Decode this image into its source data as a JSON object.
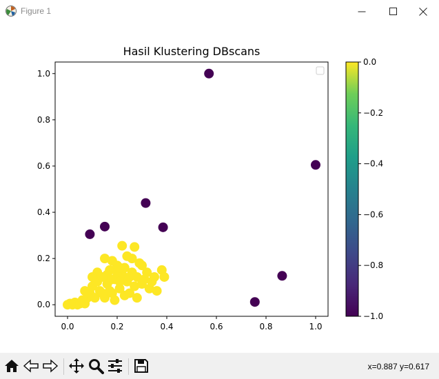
{
  "window": {
    "title": "Figure 1"
  },
  "chart_data": {
    "type": "scatter",
    "title": "Hasil Klustering DBscans",
    "xlabel": "",
    "ylabel": "",
    "xlim": [
      -0.05,
      1.05
    ],
    "ylim": [
      -0.05,
      1.05
    ],
    "xticks": [
      "0.0",
      "0.2",
      "0.4",
      "0.6",
      "0.8",
      "1.0"
    ],
    "yticks": [
      "0.0",
      "0.2",
      "0.4",
      "0.6",
      "0.8",
      "1.0"
    ],
    "legend": "top-right (empty)",
    "colorbar": {
      "min": -1.0,
      "max": 0.0,
      "cmap": "viridis",
      "ticks": [
        "−1.0",
        "−0.8",
        "−0.6",
        "−0.4",
        "−0.2",
        "0.0"
      ]
    },
    "colors": {
      "cluster": "#fde725",
      "noise": "#440154"
    },
    "series": [
      {
        "label_value": -1,
        "points": [
          [
            0.57,
            1.0
          ],
          [
            1.0,
            0.605
          ],
          [
            0.315,
            0.44
          ],
          [
            0.15,
            0.338
          ],
          [
            0.385,
            0.335
          ],
          [
            0.09,
            0.305
          ],
          [
            0.865,
            0.125
          ],
          [
            0.755,
            0.012
          ]
        ]
      },
      {
        "label_value": 0,
        "points": [
          [
            0.0,
            0.0
          ],
          [
            0.01,
            0.005
          ],
          [
            0.02,
            0.0
          ],
          [
            0.03,
            0.01
          ],
          [
            0.04,
            0.0
          ],
          [
            0.05,
            0.005
          ],
          [
            0.06,
            0.02
          ],
          [
            0.07,
            0.005
          ],
          [
            0.08,
            0.03
          ],
          [
            0.07,
            0.06
          ],
          [
            0.09,
            0.05
          ],
          [
            0.1,
            0.08
          ],
          [
            0.11,
            0.03
          ],
          [
            0.12,
            0.1
          ],
          [
            0.13,
            0.06
          ],
          [
            0.14,
            0.12
          ],
          [
            0.15,
            0.03
          ],
          [
            0.16,
            0.09
          ],
          [
            0.17,
            0.15
          ],
          [
            0.18,
            0.05
          ],
          [
            0.19,
            0.11
          ],
          [
            0.2,
            0.17
          ],
          [
            0.21,
            0.07
          ],
          [
            0.22,
            0.13
          ],
          [
            0.23,
            0.16
          ],
          [
            0.24,
            0.1
          ],
          [
            0.25,
            0.05
          ],
          [
            0.26,
            0.14
          ],
          [
            0.27,
            0.08
          ],
          [
            0.28,
            0.12
          ],
          [
            0.29,
            0.18
          ],
          [
            0.3,
            0.09
          ],
          [
            0.31,
            0.11
          ],
          [
            0.32,
            0.14
          ],
          [
            0.33,
            0.07
          ],
          [
            0.34,
            0.1
          ],
          [
            0.35,
            0.12
          ],
          [
            0.36,
            0.06
          ],
          [
            0.38,
            0.15
          ],
          [
            0.39,
            0.12
          ],
          [
            0.22,
            0.255
          ],
          [
            0.27,
            0.25
          ],
          [
            0.15,
            0.2
          ],
          [
            0.18,
            0.19
          ],
          [
            0.24,
            0.21
          ],
          [
            0.2,
            0.14
          ],
          [
            0.16,
            0.13
          ],
          [
            0.21,
            0.1
          ],
          [
            0.23,
            0.04
          ],
          [
            0.19,
            0.02
          ],
          [
            0.14,
            0.05
          ],
          [
            0.12,
            0.14
          ],
          [
            0.1,
            0.12
          ],
          [
            0.26,
            0.2
          ],
          [
            0.28,
            0.03
          ],
          [
            0.3,
            0.17
          ],
          [
            0.17,
            0.06
          ],
          [
            0.25,
            0.12
          ],
          [
            0.21,
            0.16
          ],
          [
            0.18,
            0.11
          ]
        ]
      }
    ]
  },
  "toolbar": {
    "items": [
      "home-icon",
      "back-icon",
      "forward-icon",
      "pan-icon",
      "zoom-icon",
      "configure-icon",
      "save-icon"
    ],
    "coords": "x=0.887 y=0.617"
  }
}
